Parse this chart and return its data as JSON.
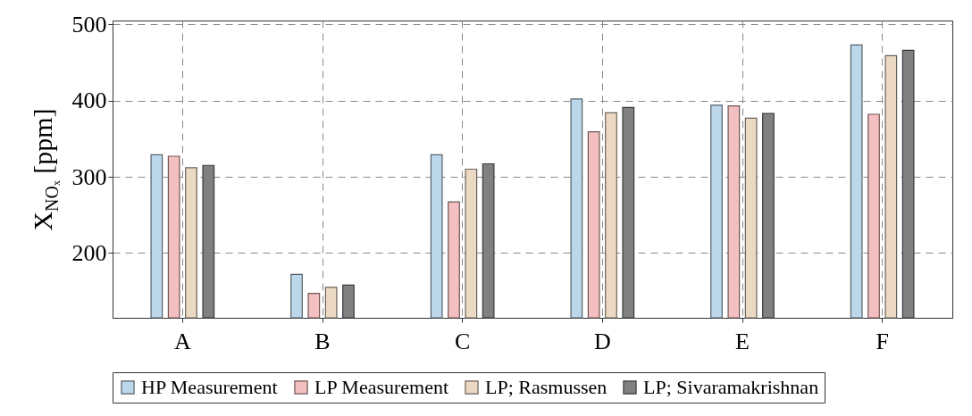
{
  "chart_data": {
    "type": "bar",
    "ylabel": "X$_{NOₓ}$ [ppm]",
    "categories": [
      "A",
      "B",
      "C",
      "D",
      "E",
      "F"
    ],
    "series": [
      {
        "name": "HP Measurement",
        "color": "#bdd7ea",
        "values": [
          329,
          172,
          329,
          402,
          394,
          473
        ]
      },
      {
        "name": "LP Measurement",
        "color": "#f4bfc0",
        "values": [
          327,
          147,
          267,
          359,
          393,
          382
        ]
      },
      {
        "name": "LP; Rasmussen",
        "color": "#ecd9c4",
        "values": [
          312,
          155,
          310,
          384,
          377,
          459
        ]
      },
      {
        "name": "LP; Sivaramakrishnan",
        "color": "#808080",
        "values": [
          315,
          158,
          317,
          391,
          383,
          466
        ]
      }
    ],
    "ylim": [
      115,
      505
    ],
    "yticks": [
      200,
      300,
      400,
      500
    ],
    "grid": true,
    "legend": "bottom"
  }
}
